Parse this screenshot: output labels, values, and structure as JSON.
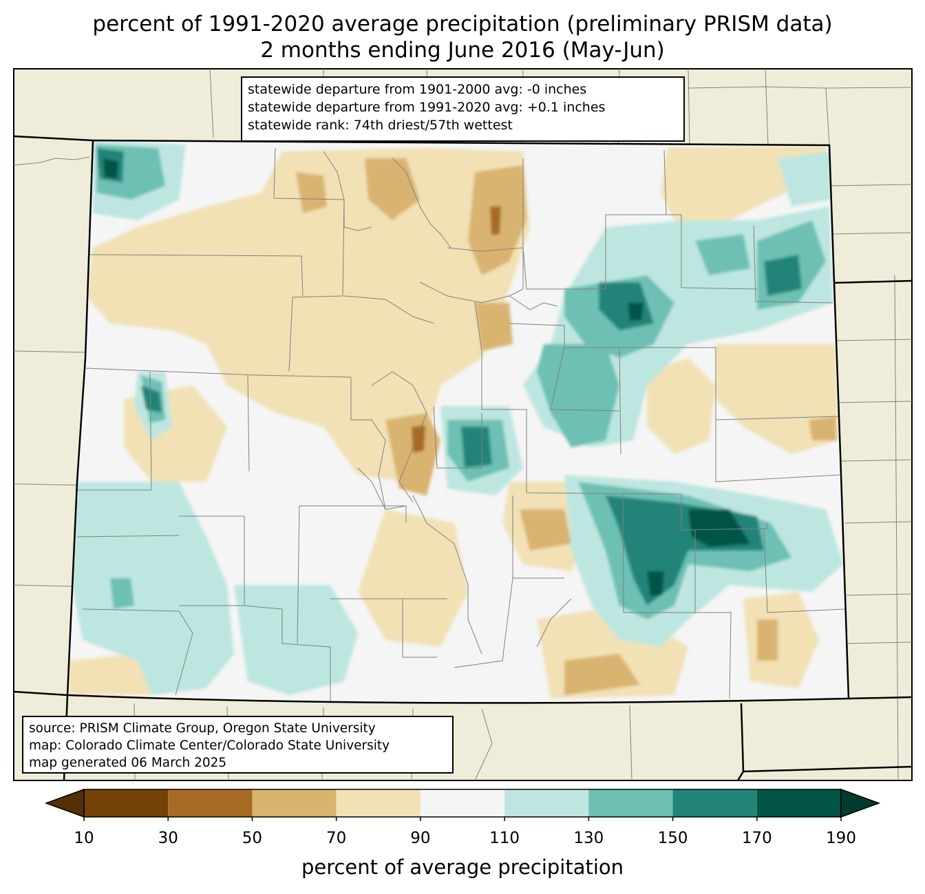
{
  "title": {
    "line1": "percent of 1991-2020 average precipitation (preliminary PRISM data)",
    "line2": "2 months ending June 2016 (May-Jun)"
  },
  "stats_box": {
    "line1": "statewide departure from 1901-2000 avg: -0 inches",
    "line2": "statewide departure from 1991-2020 avg: +0.1 inches",
    "line3": "statewide rank: 74th driest/57th wettest"
  },
  "source_box": {
    "line1": "source: PRISM Climate Group, Oregon State University",
    "line2": "map: Colorado Climate Center/Colorado State University",
    "line3": "map generated 06 March 2025"
  },
  "colorbar": {
    "label": "percent of average precipitation",
    "ticks": [
      "10",
      "30",
      "50",
      "70",
      "90",
      "110",
      "130",
      "150",
      "170",
      "190"
    ],
    "colors": [
      "#744207",
      "#a86b24",
      "#d9b46f",
      "#f1e1b5",
      "#f4f5f4",
      "#bde6e0",
      "#6dc0b3",
      "#238478",
      "#015446"
    ],
    "under_color": "#543005",
    "over_color": "#003c30"
  },
  "colors": {
    "background_land": "#efedda",
    "county_lines": "#808080",
    "state_lines": "#000000"
  }
}
